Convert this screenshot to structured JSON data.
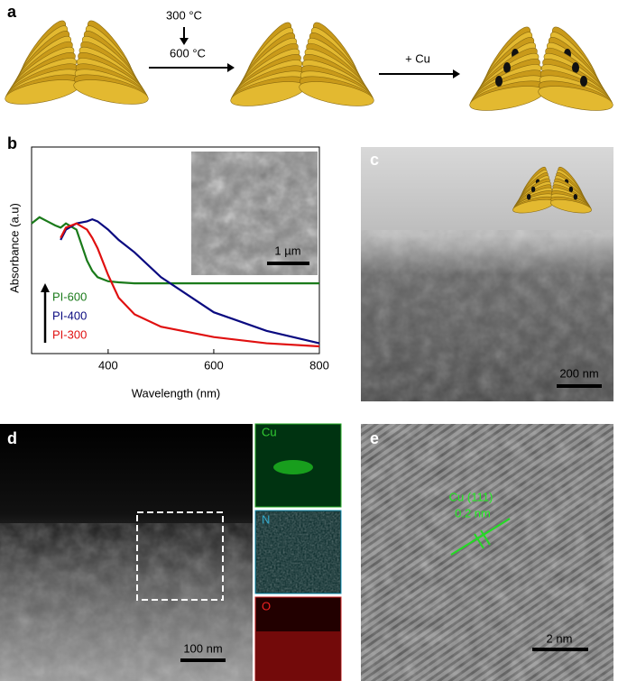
{
  "panel_labels": [
    "a",
    "b",
    "c",
    "d",
    "e"
  ],
  "scheme": {
    "step1_top": "300 °C",
    "step1_bottom": "600 °C",
    "step2": "+ Cu"
  },
  "chart_data": {
    "type": "line",
    "xlabel": "Wavelength (nm)",
    "ylabel": "Absorbance (a.u)",
    "xlim": [
      255,
      800
    ],
    "ylim": [
      0,
      1
    ],
    "xticks": [
      400,
      600,
      800
    ],
    "inset_scale_bar": "1 µm",
    "x": [
      255,
      270,
      285,
      300,
      310,
      320,
      340,
      360,
      370,
      380,
      400,
      420,
      450,
      500,
      600,
      700,
      800
    ],
    "series": [
      {
        "name": "PI-600",
        "color": "#1a7a1a",
        "values": [
          0.63,
          0.66,
          0.64,
          0.62,
          0.61,
          0.63,
          0.6,
          0.45,
          0.4,
          0.37,
          0.35,
          0.345,
          0.34,
          0.34,
          0.34,
          0.34,
          0.34
        ]
      },
      {
        "name": "PI-400",
        "color": "#0a0a80",
        "values": [
          null,
          null,
          null,
          null,
          0.55,
          0.6,
          0.63,
          0.64,
          0.65,
          0.64,
          0.6,
          0.55,
          0.49,
          0.37,
          0.2,
          0.11,
          0.05
        ]
      },
      {
        "name": "PI-300",
        "color": "#e01010",
        "values": [
          null,
          null,
          null,
          null,
          0.56,
          0.61,
          0.63,
          0.6,
          0.56,
          0.51,
          0.38,
          0.27,
          0.19,
          0.13,
          0.08,
          0.05,
          0.035
        ]
      }
    ]
  },
  "panel_c": {
    "scale_bar": "200 nm"
  },
  "panel_d": {
    "scale_bar": "100 nm",
    "maps": [
      "Cu",
      "N",
      "O"
    ]
  },
  "panel_e": {
    "annotation": [
      "Cu (111)",
      "0.2 nm"
    ],
    "scale_bar": "2 nm"
  }
}
